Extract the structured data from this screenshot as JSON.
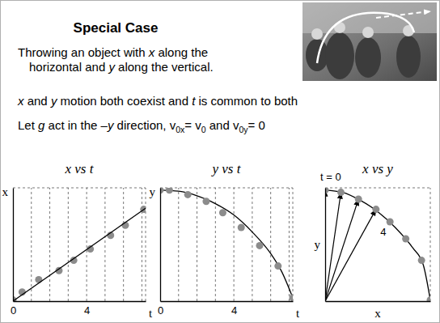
{
  "title": "Special Case",
  "intro": [
    "Throwing an object with x along the",
    "horizontal and y along the vertical."
  ],
  "statements": [
    "x and y motion both coexist and t is common to both",
    "Let g act in the –y direction, v0x= v0 and v0y= 0"
  ],
  "chart_data": [
    {
      "type": "scatter",
      "title": "x vs t",
      "x_label": "t",
      "y_label": "x",
      "xlim": [
        0,
        7.2
      ],
      "ylim": [
        0,
        10
      ],
      "xticks": [
        0,
        4
      ],
      "tick_labels": "x",
      "grid": true,
      "grid_lines": [
        1,
        2,
        3,
        4,
        5,
        6,
        7
      ],
      "series": [
        {
          "type": "scatter",
          "marker": "circle",
          "color": "#8c8c8c",
          "x": [
            0,
            0.5,
            1.4,
            2.5,
            3.3,
            4.2,
            5.3,
            6.1,
            7.1
          ],
          "values": [
            0.1,
            0.8,
            1.9,
            2.7,
            3.6,
            4.6,
            5.8,
            6.7,
            8.1
          ]
        },
        {
          "type": "line",
          "line_style": "solid",
          "color": "#000000",
          "x": [
            0,
            7.2
          ],
          "values": [
            0,
            8.2
          ]
        }
      ]
    },
    {
      "type": "scatter",
      "title": "y vs t",
      "x_label": "t",
      "y_label": "y",
      "xlim": [
        0,
        7.2
      ],
      "ylim": [
        0,
        10
      ],
      "xticks": [
        0,
        4
      ],
      "tick_labels": "x",
      "grid": true,
      "grid_lines": [
        1,
        2,
        3,
        4,
        5,
        6,
        7
      ],
      "series": [
        {
          "type": "line",
          "line_style": "solid",
          "color": "#000000",
          "x": [
            0,
            1,
            2,
            3,
            4,
            5,
            6,
            6.6,
            7.2
          ],
          "values": [
            9.8,
            9.7,
            9.3,
            8.6,
            7.6,
            6.1,
            4.2,
            2.6,
            0.3
          ]
        },
        {
          "type": "scatter",
          "marker": "circle",
          "color": "#8c8c8c",
          "x": [
            0,
            0.5,
            1.5,
            2.5,
            3.4,
            4.4,
            5.4,
            6.4,
            7.2
          ],
          "values": [
            9.8,
            9.8,
            9.4,
            8.8,
            7.8,
            6.5,
            4.9,
            3.1,
            0.3
          ]
        }
      ]
    },
    {
      "type": "scatter",
      "title": "x vs y",
      "x_label": "x",
      "y_label": "y",
      "xlim": [
        0,
        6
      ],
      "ylim": [
        0,
        10
      ],
      "tick_labels": false,
      "series": [
        {
          "type": "line",
          "line_style": "solid",
          "color": "#000000",
          "x": [
            0,
            1,
            2,
            3,
            4,
            5,
            5.6,
            6
          ],
          "values": [
            9.8,
            9.6,
            8.9,
            7.9,
            6.5,
            4.7,
            3.2,
            0.1
          ]
        },
        {
          "type": "arrow",
          "color": "#000000",
          "x": [
            0,
            0.9,
            1.9,
            2.9
          ],
          "values": [
            9.8,
            9.6,
            9.0,
            8.1
          ]
        },
        {
          "type": "scatter",
          "marker": "circle",
          "color": "#8c8c8c",
          "x": [
            0,
            0.9,
            1.9,
            2.9,
            3.7,
            4.6,
            5.5,
            6.0
          ],
          "values": [
            9.8,
            9.6,
            9.0,
            8.1,
            7.0,
            5.5,
            3.6,
            0.1
          ]
        }
      ],
      "annotations": [
        {
          "text": "t = 0",
          "x": 0,
          "y": 10
        },
        {
          "text": "4",
          "x": 3.7,
          "y": 7.0
        }
      ]
    }
  ]
}
